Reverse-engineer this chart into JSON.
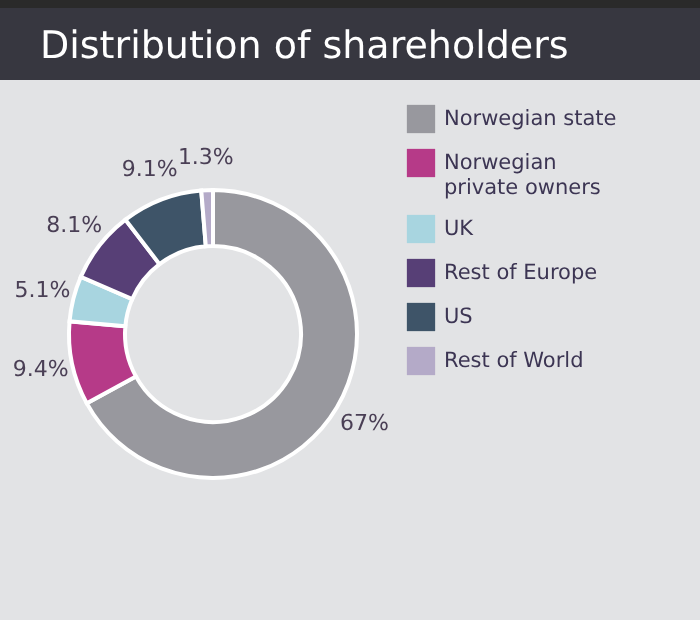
{
  "chart_data": {
    "type": "donut",
    "title": "Distribution of shareholders",
    "categories": [
      "Norwegian state",
      "Norwegian private owners",
      "UK",
      "Rest of Europe",
      "US",
      "Rest of World"
    ],
    "values": [
      67,
      9.4,
      5.1,
      8.1,
      9.1,
      1.3
    ],
    "value_labels": [
      "67%",
      "9.4%",
      "5.1%",
      "8.1%",
      "9.1%",
      "1.3%"
    ],
    "colors": [
      "#98989e",
      "#b63a88",
      "#a8d5e0",
      "#573f76",
      "#3e5468",
      "#b4aac8"
    ],
    "legend": "right"
  }
}
